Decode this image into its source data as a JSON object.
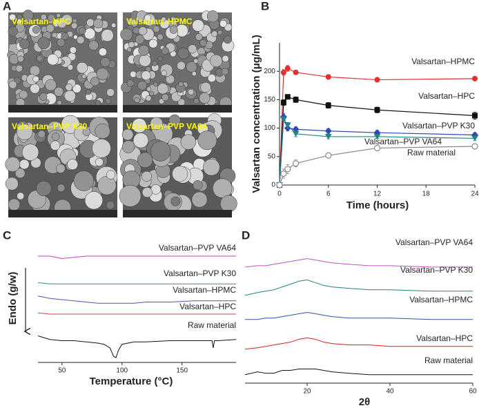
{
  "panel_labels": [
    "A",
    "B",
    "C",
    "D"
  ],
  "sem_images": [
    "Valsartan–HPC",
    "Valsartan–HPMC",
    "Valsartan–PVP K30",
    "Valsartan–PVP VA64"
  ],
  "chart_data": [
    {
      "type": "line",
      "markers": true,
      "error_bars": true,
      "x_label": "Time (hours)",
      "y_label": "Valsartan concentration (μg/mL)",
      "x": [
        0,
        0.5,
        1,
        2,
        6,
        12,
        24
      ],
      "xlim": [
        0,
        24
      ],
      "xticks": [
        0,
        6,
        12,
        18,
        24
      ],
      "ylim": [
        0,
        250
      ],
      "yticks": [
        0,
        50,
        100,
        150,
        200
      ],
      "series": [
        {
          "name": "Valsartan–HPMC",
          "color": "#e03030",
          "marker": "circle",
          "values": [
            0,
            198,
            205,
            198,
            190,
            185,
            187
          ],
          "errors": [
            0,
            5,
            5,
            3,
            4,
            3,
            3
          ]
        },
        {
          "name": "Valsartan–HPC",
          "color": "#111111",
          "marker": "square",
          "values": [
            0,
            145,
            155,
            150,
            140,
            132,
            122
          ],
          "errors": [
            0,
            5,
            4,
            5,
            5,
            5,
            6
          ]
        },
        {
          "name": "Valsartan–PVP K30",
          "color": "#3545b5",
          "marker": "diamond",
          "values": [
            0,
            120,
            100,
            98,
            95,
            92,
            88
          ],
          "errors": [
            0,
            6,
            5,
            4,
            4,
            4,
            4
          ]
        },
        {
          "name": "Valsartan–PVP VA64",
          "color": "#208585",
          "marker": "triangle-down",
          "values": [
            0,
            115,
            105,
            90,
            85,
            85,
            82
          ],
          "errors": [
            0,
            5,
            5,
            5,
            4,
            3,
            4
          ]
        },
        {
          "name": "Raw material",
          "color": "#888888",
          "marker": "open-circle",
          "values": [
            0,
            20,
            28,
            38,
            52,
            65,
            68
          ],
          "errors": [
            0,
            8,
            8,
            6,
            4,
            3,
            3
          ]
        }
      ]
    },
    {
      "type": "line",
      "markers": false,
      "x_label": "Temperature (°C)",
      "y_label": "Endo (g/w)",
      "x": [
        30,
        40,
        50,
        60,
        70,
        80,
        85,
        90,
        93,
        95,
        97,
        100,
        110,
        120,
        140,
        160,
        175,
        176,
        177,
        180,
        195
      ],
      "xlim": [
        30,
        195
      ],
      "xticks": [
        50,
        100,
        150
      ],
      "ylim": [
        0,
        100
      ],
      "series": [
        {
          "name": "Valsartan–PVP VA64",
          "color": "#c040c0",
          "values": [
            88,
            88,
            86,
            87,
            88,
            88,
            88,
            88,
            88,
            88,
            88,
            88,
            88,
            88,
            88,
            88,
            88,
            88,
            88,
            88,
            88
          ]
        },
        {
          "name": "Valsartan–PVP K30",
          "color": "#2a9090",
          "values": [
            66,
            65,
            65,
            65,
            65,
            65,
            65,
            65,
            65,
            65,
            65,
            65,
            65,
            65,
            65,
            65,
            65,
            65,
            65,
            65,
            65
          ]
        },
        {
          "name": "Valsartan–HPMC",
          "color": "#5050b0",
          "values": [
            55,
            53,
            52,
            51,
            50,
            49,
            49,
            49,
            49,
            49,
            49,
            49,
            49,
            50,
            50,
            51,
            51,
            51,
            51,
            51,
            51
          ]
        },
        {
          "name": "Valsartan–HPC",
          "color": "#d04040",
          "values": [
            41,
            40,
            40,
            40,
            40,
            40,
            40,
            40,
            40,
            40,
            40,
            40,
            40,
            40,
            40,
            40,
            40,
            40,
            40,
            40,
            40
          ]
        },
        {
          "name": "Raw material",
          "color": "#111111",
          "values": [
            22,
            19,
            18,
            18,
            17,
            16,
            15,
            12,
            5,
            4,
            10,
            15,
            17,
            17,
            18,
            18,
            18,
            12,
            18,
            18,
            19
          ]
        }
      ]
    },
    {
      "type": "line",
      "markers": false,
      "x_label": "2θ",
      "x": [
        5,
        8,
        10,
        12,
        14,
        16,
        18,
        20,
        22,
        24,
        26,
        30,
        35,
        40,
        50,
        60
      ],
      "xlim": [
        5,
        60
      ],
      "xticks": [
        20,
        40,
        60
      ],
      "ylim": [
        0,
        100
      ],
      "series": [
        {
          "name": "Valsartan–PVP VA64",
          "color": "#c050c0",
          "values": [
            82,
            83,
            83,
            84,
            85,
            86,
            87,
            88,
            87,
            86,
            85,
            84,
            83,
            83,
            82,
            82
          ]
        },
        {
          "name": "Valsartan–PVP K30",
          "color": "#208080",
          "values": [
            62,
            64,
            65,
            66,
            68,
            70,
            72,
            73,
            71,
            69,
            68,
            67,
            66,
            66,
            65,
            65
          ]
        },
        {
          "name": "Valsartan–HPMC",
          "color": "#3050a0",
          "values": [
            45,
            45,
            46,
            46,
            47,
            48,
            49,
            50,
            49,
            48,
            47,
            46,
            46,
            46,
            45,
            45
          ]
        },
        {
          "name": "Valsartan–HPC",
          "color": "#d02020",
          "values": [
            24,
            25,
            26,
            27,
            28,
            29,
            31,
            32,
            31,
            29,
            28,
            27,
            27,
            26,
            26,
            26
          ]
        },
        {
          "name": "Raw material",
          "color": "#111111",
          "values": [
            6,
            8,
            7,
            7,
            9,
            9,
            10,
            10,
            10,
            9,
            8,
            7,
            6,
            6,
            6,
            6
          ]
        }
      ]
    }
  ]
}
